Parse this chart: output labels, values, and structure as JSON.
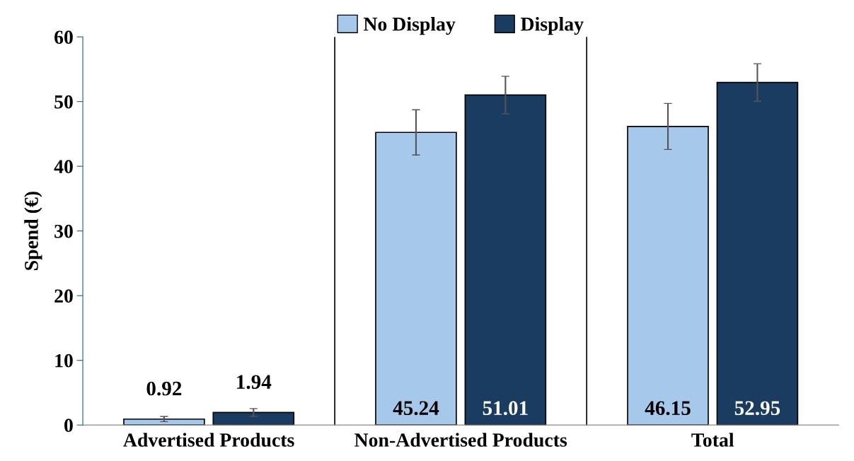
{
  "chart_data": {
    "type": "bar",
    "ylabel": "Spend (€)",
    "categories": [
      "Advertised Products",
      "Non-Advertised Products",
      "Total"
    ],
    "series": [
      {
        "name": "No Display",
        "color": "#a6c8ea",
        "values": [
          0.92,
          45.24,
          46.15
        ],
        "errors": [
          0.4,
          3.5,
          3.55
        ]
      },
      {
        "name": "Display",
        "color": "#1a3c61",
        "values": [
          1.94,
          51.01,
          52.95
        ],
        "errors": [
          0.6,
          2.9,
          2.9
        ]
      }
    ],
    "ylim": [
      0,
      60
    ],
    "yticks": [
      0,
      10,
      20,
      30,
      40,
      50,
      60
    ],
    "grid": false,
    "legend": "top",
    "data_labels": true
  }
}
